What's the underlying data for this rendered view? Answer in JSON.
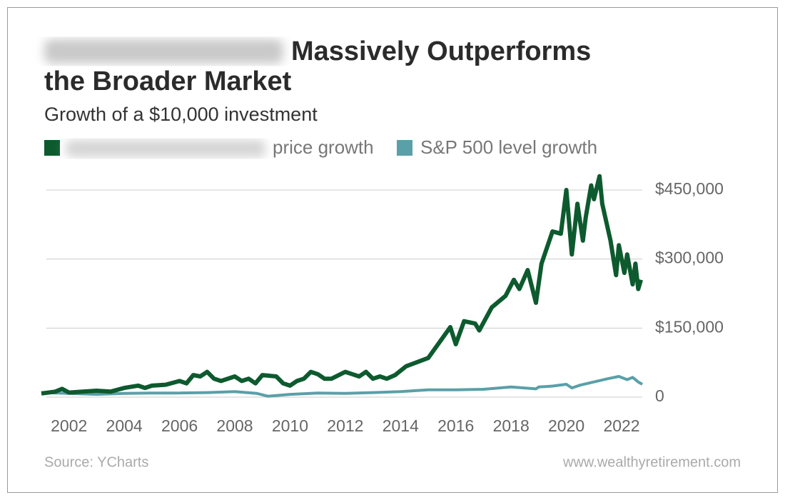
{
  "chart_data": {
    "type": "line",
    "title": [
      "Massively Outperforms",
      "the Broader Market"
    ],
    "subtitle": "Growth of a $10,000 investment",
    "source": "Source: YCharts",
    "credit": "www.wealthyretirement.com",
    "xlim": [
      2001,
      2022.8
    ],
    "xticks": [
      2002,
      2004,
      2006,
      2008,
      2010,
      2012,
      2014,
      2016,
      2018,
      2020,
      2022
    ],
    "ylim": [
      0,
      450000
    ],
    "yticks": [
      0,
      {
        "value": 150000,
        "label": "$150,000"
      },
      {
        "value": 300000,
        "label": "$300,000"
      },
      {
        "value": 450000,
        "label": "$450,000"
      }
    ],
    "grid": true,
    "series": [
      {
        "name": "price growth",
        "color": "#0d5a2e",
        "x": [
          2001,
          2001.5,
          2001.75,
          2002,
          2002.5,
          2003,
          2003.5,
          2004,
          2004.5,
          2004.75,
          2005,
          2005.5,
          2006,
          2006.25,
          2006.5,
          2006.75,
          2007,
          2007.25,
          2007.5,
          2008,
          2008.25,
          2008.5,
          2008.75,
          2009,
          2009.5,
          2009.75,
          2010,
          2010.25,
          2010.5,
          2010.75,
          2011,
          2011.25,
          2011.5,
          2012,
          2012.25,
          2012.5,
          2012.75,
          2013,
          2013.25,
          2013.5,
          2013.8,
          2014.2,
          2015,
          2015.8,
          2016,
          2016.3,
          2016.7,
          2016.85,
          2017.3,
          2017.8,
          2018.1,
          2018.3,
          2018.6,
          2018.9,
          2019.1,
          2019.5,
          2019.8,
          2020,
          2020.2,
          2020.4,
          2020.6,
          2020.7,
          2020.9,
          2021,
          2021.2,
          2021.3,
          2021.6,
          2021.8,
          2021.9,
          2022.1,
          2022.2,
          2022.4,
          2022.5,
          2022.6,
          2022.7
        ],
        "values": [
          8000,
          12000,
          18000,
          10000,
          12000,
          14000,
          12000,
          20000,
          25000,
          20000,
          25000,
          27000,
          35000,
          30000,
          48000,
          45000,
          55000,
          40000,
          35000,
          45000,
          35000,
          40000,
          30000,
          48000,
          45000,
          30000,
          25000,
          35000,
          40000,
          55000,
          50000,
          40000,
          40000,
          55000,
          50000,
          45000,
          55000,
          40000,
          45000,
          40000,
          48000,
          67000,
          85000,
          152000,
          115000,
          165000,
          160000,
          145000,
          195000,
          220000,
          255000,
          235000,
          276000,
          205000,
          290000,
          360000,
          355000,
          450000,
          310000,
          420000,
          340000,
          390000,
          460000,
          430000,
          480000,
          420000,
          340000,
          265000,
          330000,
          270000,
          310000,
          245000,
          290000,
          235000,
          255000
        ]
      },
      {
        "name": "S&P 500 level growth",
        "color": "#5aa0a8",
        "x": [
          2001,
          2002,
          2003,
          2004,
          2005,
          2006,
          2007,
          2008,
          2008.8,
          2009.2,
          2010,
          2011,
          2012,
          2013,
          2014,
          2015,
          2016,
          2017,
          2018,
          2018.9,
          2019,
          2019.5,
          2020,
          2020.2,
          2020.5,
          2021,
          2021.5,
          2021.9,
          2022.2,
          2022.4,
          2022.6,
          2022.75
        ],
        "values": [
          10000,
          8000,
          6000,
          8000,
          9000,
          9000,
          10000,
          12000,
          8000,
          2000,
          6000,
          9000,
          8000,
          10000,
          12000,
          16000,
          16000,
          17000,
          22000,
          18000,
          22000,
          24000,
          28000,
          20000,
          26000,
          33000,
          40000,
          45000,
          38000,
          43000,
          33000,
          28000
        ]
      }
    ]
  }
}
